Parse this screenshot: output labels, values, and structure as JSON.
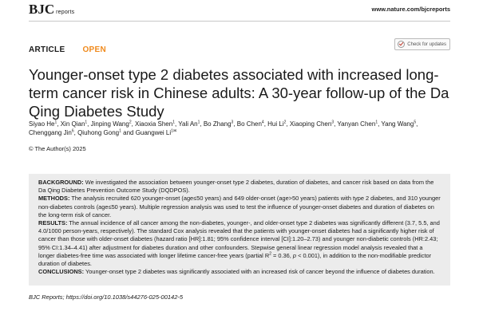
{
  "header": {
    "journal_brand": "BJC",
    "journal_sub": "reports",
    "url": "www.nature.com/bjcreports"
  },
  "article_type": "ARTICLE",
  "access": "OPEN",
  "check_updates": "Check for updates",
  "title": "Younger-onset type 2 diabetes associated with increased long-term cancer risk in Chinese adults: A 30-year follow-up of the Da Qing Diabetes Study",
  "authors": [
    {
      "name": "Siyao He",
      "aff": "1"
    },
    {
      "name": "Xin Qian",
      "aff": "1"
    },
    {
      "name": "Jinping Wang",
      "aff": "2"
    },
    {
      "name": "Xiaoxia Shen",
      "aff": "1"
    },
    {
      "name": "Yali An",
      "aff": "1"
    },
    {
      "name": "Bo Zhang",
      "aff": "3"
    },
    {
      "name": "Bo Chen",
      "aff": "4"
    },
    {
      "name": "Hui Li",
      "aff": "2"
    },
    {
      "name": "Xiaoping Chen",
      "aff": "3"
    },
    {
      "name": "Yanyan Chen",
      "aff": "1"
    },
    {
      "name": "Yang Wang",
      "aff": "5"
    },
    {
      "name": "Chenggang Jin",
      "aff": "6"
    },
    {
      "name": "Qiuhong Gong",
      "aff": "1"
    },
    {
      "name": "Guangwei Li",
      "aff": "1✉"
    }
  ],
  "authors_and": "and",
  "copyright": "© The Author(s) 2025",
  "abstract": {
    "background_label": "BACKGROUND:",
    "background": "We investigated the association between younger-onset type 2 diabetes, duration of diabetes, and cancer risk based on data from the Da Qing Diabetes Prevention Outcome Study (DQDPOS).",
    "methods_label": "METHODS:",
    "methods": "The analysis recruited 620 younger-onset (age≤50 years) and 649 older-onset (age>50 years) patients with type 2 diabetes, and 310 younger non-diabetes controls (age≤50 years). Multiple regression analysis was used to test the influence of younger-onset diabetes and duration of diabetes on the long-term risk of cancer.",
    "results_label": "RESULTS:",
    "results_a": "The annual incidence of all cancer among the non-diabetes, younger-, and older-onset type 2 diabetes was significantly different (3.7, 5.5, and 4.0/1000 person-years, respectively). The standard Cox analysis revealed that the patients with younger-onset diabetes had a significantly higher risk of cancer than those with older-onset diabetes (hazard ratio [HR]:1.81; 95% confidence interval [CI]:1.20–2.73) and younger non-diabetic controls (HR:2.43; 95% CI:1.34–4.41) after adjustment for diabetes duration and other confounders. Stepwise general linear regression model analysis revealed that a longer diabetes-free time was associated with longer lifetime cancer-free years (partial R",
    "results_sup": "2",
    "results_b": " = 0.36, ",
    "results_p": "p",
    "results_c": " < 0.001), in addition to the non-modifiable predictor duration of diabetes.",
    "conclusions_label": "CONCLUSIONS:",
    "conclusions": "Younger-onset type 2 diabetes was significantly associated with an increased risk of cancer beyond the influence of diabetes duration."
  },
  "citation": "BJC Reports; https://doi.org/10.1038/s44276-025-00142-5"
}
